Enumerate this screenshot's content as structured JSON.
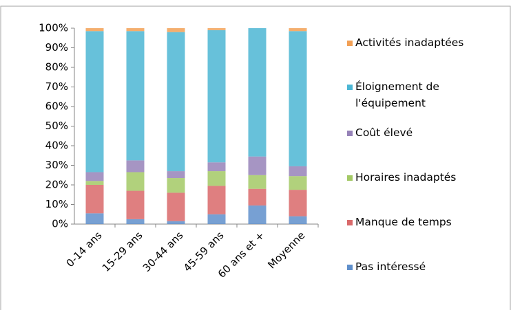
{
  "chart_data": {
    "type": "stacked_bar_100",
    "categories": [
      "0-14 ans",
      "15-29 ans",
      "30-44 ans",
      "45-59 ans",
      "60 ans et +",
      "Moyenne"
    ],
    "series": [
      {
        "name": "Pas intéressé",
        "color": "#5f8fcb",
        "values": [
          5.5,
          2.5,
          1.5,
          5,
          9.5,
          4
        ]
      },
      {
        "name": "Manque de temps",
        "color": "#d9696a",
        "values": [
          14.5,
          14.5,
          14.5,
          14.5,
          8.5,
          13.5
        ]
      },
      {
        "name": "Horaires inadaptés",
        "color": "#a3c965",
        "values": [
          2,
          9.5,
          7.5,
          7.5,
          7,
          7
        ]
      },
      {
        "name": "Coût élevé",
        "color": "#9682b8",
        "values": [
          4.5,
          6,
          3.5,
          4.5,
          9.5,
          5
        ]
      },
      {
        "name": "Éloignement de l'équipement",
        "color": "#4cb6d4",
        "values": [
          72,
          66,
          71,
          67.5,
          65.5,
          69
        ]
      },
      {
        "name": "Activités inadaptées",
        "color": "#f2a055",
        "values": [
          1.5,
          1.5,
          2,
          1,
          0,
          1.5
        ]
      }
    ],
    "ylim": [
      0,
      100
    ],
    "yticks": [
      {
        "value": 0,
        "label": "0%"
      },
      {
        "value": 10,
        "label": "10%"
      },
      {
        "value": 20,
        "label": "20%"
      },
      {
        "value": 30,
        "label": "30%"
      },
      {
        "value": 40,
        "label": "40%"
      },
      {
        "value": 50,
        "label": "50%"
      },
      {
        "value": 60,
        "label": "60%"
      },
      {
        "value": 70,
        "label": "70%"
      },
      {
        "value": 80,
        "label": "80%"
      },
      {
        "value": 90,
        "label": "90%"
      },
      {
        "value": 100,
        "label": "100%"
      }
    ],
    "legend": "right"
  }
}
